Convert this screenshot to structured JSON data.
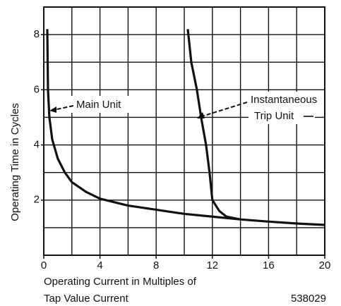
{
  "chart_data": {
    "type": "line",
    "ylabel": "Operating Time in Cycles",
    "xlabel": [
      "Operating Current in Multiples of",
      "Tap Value Current"
    ],
    "figure_number": "538029",
    "annotations": {
      "main": "Main Unit",
      "instantaneous": [
        "Instantaneous",
        "Trip Unit"
      ]
    },
    "xlim": [
      0,
      20
    ],
    "ylim": [
      0,
      9
    ],
    "xticks": [
      0,
      4,
      8,
      12,
      16,
      20
    ],
    "yticks": [
      2,
      4,
      6,
      8
    ],
    "x_grid": [
      2,
      4,
      6,
      8,
      10,
      12,
      14,
      16,
      18
    ],
    "y_grid": [
      1,
      2,
      3,
      4,
      5,
      6,
      7,
      8
    ],
    "grid": true,
    "series": [
      {
        "name": "Main Unit",
        "color": "#111111",
        "x": [
          0.25,
          0.3,
          0.4,
          0.6,
          1,
          1.5,
          2,
          3,
          4,
          6,
          8,
          10,
          12,
          14,
          16,
          18,
          20
        ],
        "values": [
          8.2,
          6,
          5,
          4.2,
          3.5,
          3,
          2.65,
          2.3,
          2.05,
          1.8,
          1.65,
          1.5,
          1.4,
          1.3,
          1.22,
          1.15,
          1.1
        ]
      },
      {
        "name": "Instantaneous Trip Unit",
        "color": "#111111",
        "x": [
          10.25,
          10.5,
          10.9,
          11.2,
          11.55,
          11.8,
          12,
          12.5,
          13,
          14
        ],
        "values": [
          8.2,
          7,
          6,
          5,
          4,
          3,
          2,
          1.6,
          1.4,
          1.3
        ]
      }
    ]
  }
}
